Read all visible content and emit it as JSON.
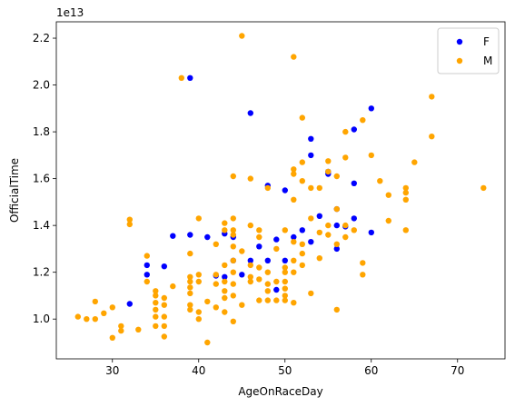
{
  "chart_data": {
    "type": "scatter",
    "xlabel": "AgeOnRaceDay",
    "ylabel": "OfficialTime",
    "offset_text": "1e13",
    "xlim": [
      23.5,
      75.5
    ],
    "ylim": [
      0.83,
      2.27
    ],
    "xticks": [
      30,
      40,
      50,
      60,
      70
    ],
    "yticks": [
      1.0,
      1.2,
      1.4,
      1.6,
      1.8,
      2.0,
      2.2
    ],
    "xtick_labels": [
      "30",
      "40",
      "50",
      "60",
      "70"
    ],
    "ytick_labels": [
      "1.0",
      "1.2",
      "1.4",
      "1.6",
      "1.8",
      "2.0",
      "2.2"
    ],
    "legend_position": "upper-right",
    "grid": false,
    "series": [
      {
        "name": "F",
        "color": "#0000ff",
        "points": [
          [
            32,
            1.065
          ],
          [
            34,
            1.23
          ],
          [
            34,
            1.19
          ],
          [
            36,
            1.225
          ],
          [
            37,
            1.355
          ],
          [
            39,
            1.36
          ],
          [
            39,
            2.03
          ],
          [
            41,
            1.35
          ],
          [
            42,
            1.185
          ],
          [
            43,
            1.365
          ],
          [
            43,
            1.18
          ],
          [
            44,
            1.25
          ],
          [
            44,
            1.35
          ],
          [
            45,
            1.19
          ],
          [
            46,
            1.88
          ],
          [
            46,
            1.25
          ],
          [
            47,
            1.31
          ],
          [
            48,
            1.25
          ],
          [
            48,
            1.57
          ],
          [
            49,
            1.125
          ],
          [
            49,
            1.34
          ],
          [
            50,
            1.55
          ],
          [
            50,
            1.25
          ],
          [
            51,
            1.35
          ],
          [
            52,
            1.38
          ],
          [
            53,
            1.77
          ],
          [
            53,
            1.7
          ],
          [
            53,
            1.33
          ],
          [
            54,
            1.44
          ],
          [
            55,
            1.63
          ],
          [
            55,
            1.62
          ],
          [
            56,
            1.3
          ],
          [
            56,
            1.4
          ],
          [
            56,
            1.47
          ],
          [
            57,
            1.395
          ],
          [
            58,
            1.81
          ],
          [
            58,
            1.58
          ],
          [
            58,
            1.43
          ],
          [
            60,
            1.9
          ],
          [
            60,
            1.37
          ]
        ]
      },
      {
        "name": "M",
        "color": "#ffa500",
        "points": [
          [
            26,
            1.01
          ],
          [
            27,
            1.0
          ],
          [
            28,
            1.0
          ],
          [
            28,
            1.075
          ],
          [
            29,
            1.025
          ],
          [
            30,
            0.92
          ],
          [
            30,
            1.05
          ],
          [
            31,
            0.97
          ],
          [
            31,
            0.95
          ],
          [
            32,
            1.425
          ],
          [
            32,
            1.405
          ],
          [
            33,
            0.955
          ],
          [
            34,
            1.27
          ],
          [
            34,
            1.16
          ],
          [
            35,
            1.12
          ],
          [
            35,
            1.1
          ],
          [
            35,
            1.07
          ],
          [
            35,
            1.04
          ],
          [
            35,
            1.01
          ],
          [
            35,
            0.97
          ],
          [
            36,
            1.09
          ],
          [
            36,
            1.06
          ],
          [
            36,
            1.01
          ],
          [
            36,
            0.97
          ],
          [
            36,
            0.925
          ],
          [
            37,
            1.14
          ],
          [
            38,
            2.03
          ],
          [
            39,
            1.28
          ],
          [
            39,
            1.18
          ],
          [
            39,
            1.16
          ],
          [
            39,
            1.135
          ],
          [
            39,
            1.11
          ],
          [
            39,
            1.06
          ],
          [
            39,
            1.04
          ],
          [
            40,
            1.43
          ],
          [
            40,
            1.19
          ],
          [
            40,
            1.16
          ],
          [
            40,
            1.03
          ],
          [
            40,
            1.0
          ],
          [
            41,
            1.075
          ],
          [
            41,
            0.9
          ],
          [
            42,
            1.32
          ],
          [
            42,
            1.19
          ],
          [
            42,
            1.15
          ],
          [
            42,
            1.05
          ],
          [
            43,
            1.41
          ],
          [
            43,
            1.38
          ],
          [
            43,
            1.23
          ],
          [
            43,
            1.16
          ],
          [
            43,
            1.12
          ],
          [
            43,
            1.09
          ],
          [
            43,
            1.03
          ],
          [
            44,
            1.61
          ],
          [
            44,
            1.43
          ],
          [
            44,
            1.38
          ],
          [
            44,
            1.36
          ],
          [
            44,
            1.31
          ],
          [
            44,
            1.25
          ],
          [
            44,
            1.2
          ],
          [
            44,
            1.15
          ],
          [
            44,
            1.1
          ],
          [
            44,
            0.99
          ],
          [
            45,
            2.21
          ],
          [
            45,
            1.29
          ],
          [
            45,
            1.06
          ],
          [
            46,
            1.6
          ],
          [
            46,
            1.4
          ],
          [
            46,
            1.23
          ],
          [
            46,
            1.18
          ],
          [
            46,
            1.16
          ],
          [
            47,
            1.38
          ],
          [
            47,
            1.35
          ],
          [
            47,
            1.22
          ],
          [
            47,
            1.17
          ],
          [
            47,
            1.08
          ],
          [
            48,
            1.56
          ],
          [
            48,
            1.2
          ],
          [
            48,
            1.15
          ],
          [
            48,
            1.12
          ],
          [
            48,
            1.08
          ],
          [
            49,
            1.3
          ],
          [
            49,
            1.16
          ],
          [
            49,
            1.08
          ],
          [
            50,
            1.38
          ],
          [
            50,
            1.22
          ],
          [
            50,
            1.2
          ],
          [
            50,
            1.16
          ],
          [
            50,
            1.13
          ],
          [
            50,
            1.1
          ],
          [
            50,
            1.08
          ],
          [
            51,
            2.12
          ],
          [
            51,
            1.64
          ],
          [
            51,
            1.62
          ],
          [
            51,
            1.51
          ],
          [
            51,
            1.33
          ],
          [
            51,
            1.25
          ],
          [
            51,
            1.2
          ],
          [
            51,
            1.07
          ],
          [
            52,
            1.86
          ],
          [
            52,
            1.67
          ],
          [
            52,
            1.59
          ],
          [
            52,
            1.32
          ],
          [
            52,
            1.28
          ],
          [
            52,
            1.23
          ],
          [
            53,
            1.56
          ],
          [
            53,
            1.43
          ],
          [
            53,
            1.11
          ],
          [
            54,
            1.56
          ],
          [
            54,
            1.37
          ],
          [
            54,
            1.26
          ],
          [
            55,
            1.675
          ],
          [
            55,
            1.63
          ],
          [
            55,
            1.4
          ],
          [
            55,
            1.36
          ],
          [
            56,
            1.61
          ],
          [
            56,
            1.47
          ],
          [
            56,
            1.32
          ],
          [
            56,
            1.04
          ],
          [
            57,
            1.8
          ],
          [
            57,
            1.69
          ],
          [
            57,
            1.4
          ],
          [
            57,
            1.35
          ],
          [
            58,
            1.38
          ],
          [
            59,
            1.85
          ],
          [
            59,
            1.24
          ],
          [
            59,
            1.19
          ],
          [
            60,
            1.7
          ],
          [
            61,
            1.59
          ],
          [
            62,
            1.53
          ],
          [
            62,
            1.42
          ],
          [
            64,
            1.56
          ],
          [
            64,
            1.54
          ],
          [
            64,
            1.51
          ],
          [
            64,
            1.38
          ],
          [
            65,
            1.67
          ],
          [
            67,
            1.95
          ],
          [
            67,
            1.78
          ],
          [
            73,
            1.56
          ]
        ]
      }
    ]
  }
}
